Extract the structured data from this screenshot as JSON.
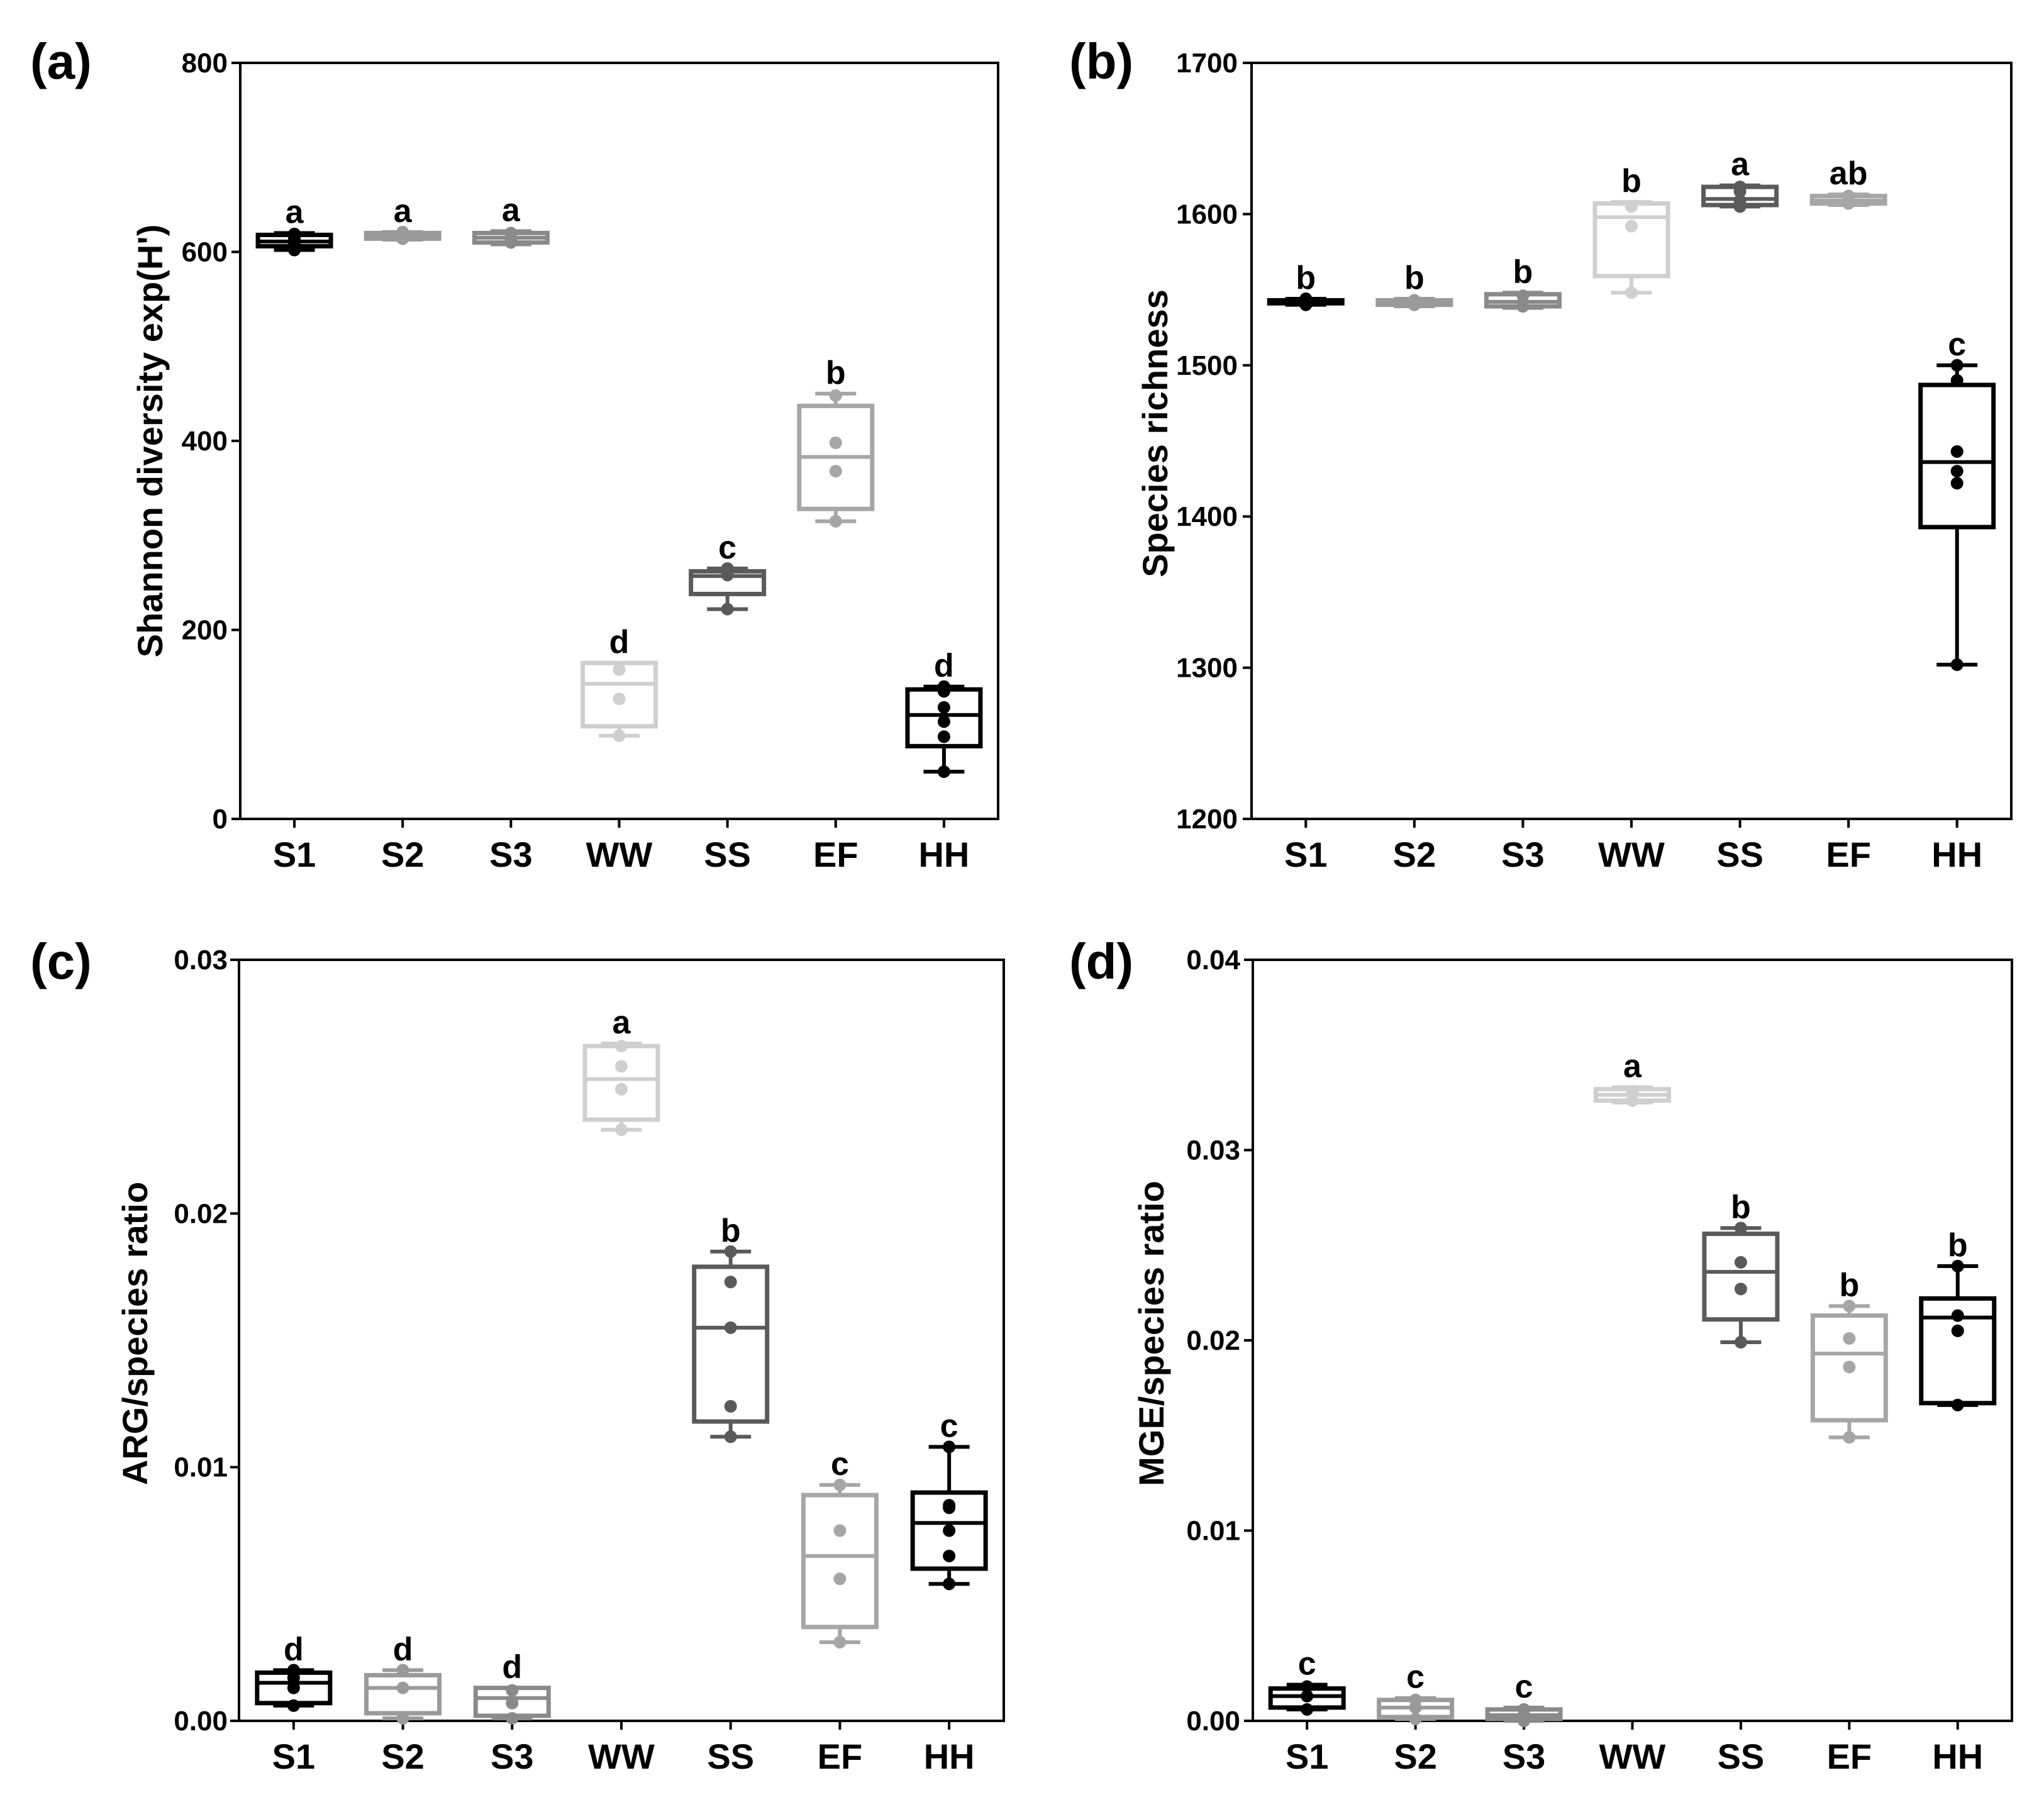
{
  "colors": {
    "S1": "#000000",
    "S2": "#9a9a9a",
    "S3": "#8a8a8a",
    "WW": "#cfcfcf",
    "SS": "#5a5a5a",
    "EF": "#a6a6a6",
    "HH": "#000000"
  },
  "chart_data": [
    {
      "type": "boxplot",
      "panel": "(a)",
      "ylabel": "Shannon diversity exp(H')",
      "ylim": [
        0,
        800
      ],
      "yticks": [
        0,
        200,
        400,
        600,
        800
      ],
      "ytick_labels": [
        "0",
        "200",
        "400",
        "600",
        "800"
      ],
      "categories": [
        "S1",
        "S2",
        "S3",
        "WW",
        "SS",
        "EF",
        "HH"
      ],
      "boxes": [
        {
          "group": "S1",
          "min": 602,
          "q1": 606,
          "median": 611,
          "q3": 618,
          "max": 620,
          "points": [
            602,
            610,
            614,
            619
          ],
          "sig": "a"
        },
        {
          "group": "S2",
          "min": 613,
          "q1": 614,
          "median": 617,
          "q3": 620,
          "max": 621,
          "points": [
            614,
            617,
            619,
            621
          ],
          "sig": "a"
        },
        {
          "group": "S3",
          "min": 608,
          "q1": 610,
          "median": 615,
          "q3": 620,
          "max": 622,
          "points": [
            610,
            612,
            620
          ],
          "sig": "a"
        },
        {
          "group": "WW",
          "min": 88,
          "q1": 98,
          "median": 143,
          "q3": 165,
          "max": 165,
          "points": [
            88,
            127,
            158
          ],
          "sig": "d"
        },
        {
          "group": "SS",
          "min": 222,
          "q1": 238,
          "median": 257,
          "q3": 262,
          "max": 265,
          "points": [
            222,
            258,
            262,
            265
          ],
          "sig": "c"
        },
        {
          "group": "EF",
          "min": 315,
          "q1": 328,
          "median": 383,
          "q3": 437,
          "max": 450,
          "points": [
            315,
            368,
            398,
            448
          ],
          "sig": "b"
        },
        {
          "group": "HH",
          "min": 50,
          "q1": 77,
          "median": 110,
          "q3": 137,
          "max": 140,
          "points": [
            50,
            87,
            103,
            118,
            135,
            140
          ],
          "sig": "d"
        }
      ]
    },
    {
      "type": "boxplot",
      "panel": "(b)",
      "ylabel": "Species richness",
      "ylim": [
        1200,
        1700
      ],
      "yticks": [
        1200,
        1300,
        1400,
        1500,
        1600,
        1700
      ],
      "ytick_labels": [
        "1200",
        "1300",
        "1400",
        "1500",
        "1600",
        "1700"
      ],
      "categories": [
        "S1",
        "S2",
        "S3",
        "WW",
        "SS",
        "EF",
        "HH"
      ],
      "boxes": [
        {
          "group": "S1",
          "min": 1540,
          "q1": 1541,
          "median": 1542,
          "q3": 1543,
          "max": 1544,
          "points": [
            1540,
            1541,
            1542,
            1543,
            1544
          ],
          "sig": "b"
        },
        {
          "group": "S2",
          "min": 1539,
          "q1": 1540,
          "median": 1541,
          "q3": 1543,
          "max": 1544,
          "points": [
            1540,
            1542,
            1543
          ],
          "sig": "b"
        },
        {
          "group": "S3",
          "min": 1538,
          "q1": 1539,
          "median": 1542,
          "q3": 1547,
          "max": 1548,
          "points": [
            1539,
            1546
          ],
          "sig": "b"
        },
        {
          "group": "WW",
          "min": 1548,
          "q1": 1559,
          "median": 1598,
          "q3": 1607,
          "max": 1608,
          "points": [
            1548,
            1592,
            1605
          ],
          "sig": "b"
        },
        {
          "group": "SS",
          "min": 1605,
          "q1": 1606,
          "median": 1610,
          "q3": 1618,
          "max": 1619,
          "points": [
            1605,
            1609,
            1615,
            1618
          ],
          "sig": "a"
        },
        {
          "group": "EF",
          "min": 1606,
          "q1": 1607,
          "median": 1609,
          "q3": 1612,
          "max": 1613,
          "points": [
            1607,
            1610,
            1612
          ],
          "sig": "ab"
        },
        {
          "group": "HH",
          "min": 1302,
          "q1": 1393,
          "median": 1436,
          "q3": 1487,
          "max": 1500,
          "points": [
            1302,
            1422,
            1430,
            1443,
            1490,
            1500
          ],
          "sig": "c"
        }
      ]
    },
    {
      "type": "boxplot",
      "panel": "(c)",
      "ylabel": "ARG/species ratio",
      "ylim": [
        0,
        0.03
      ],
      "yticks": [
        0,
        0.01,
        0.02,
        0.03
      ],
      "ytick_labels": [
        "0.00",
        "0.01",
        "0.02",
        "0.03"
      ],
      "categories": [
        "S1",
        "S2",
        "S3",
        "WW",
        "SS",
        "EF",
        "HH"
      ],
      "boxes": [
        {
          "group": "S1",
          "min": 0.0006,
          "q1": 0.0007,
          "median": 0.0015,
          "q3": 0.0019,
          "max": 0.002,
          "points": [
            0.0006,
            0.0013,
            0.0017,
            0.002
          ],
          "sig": "d"
        },
        {
          "group": "S2",
          "min": 0.0001,
          "q1": 0.0003,
          "median": 0.0013,
          "q3": 0.0018,
          "max": 0.002,
          "points": [
            0.0001,
            0.0013,
            0.002
          ],
          "sig": "d"
        },
        {
          "group": "S3",
          "min": 0.0001,
          "q1": 0.0002,
          "median": 0.0009,
          "q3": 0.0013,
          "max": 0.0013,
          "points": [
            0.0001,
            0.0007,
            0.0012
          ],
          "sig": "d"
        },
        {
          "group": "WW",
          "min": 0.0233,
          "q1": 0.0237,
          "median": 0.0253,
          "q3": 0.0266,
          "max": 0.0267,
          "points": [
            0.0233,
            0.0249,
            0.0258,
            0.0266
          ],
          "sig": "a"
        },
        {
          "group": "SS",
          "min": 0.0112,
          "q1": 0.0118,
          "median": 0.0155,
          "q3": 0.0179,
          "max": 0.0185,
          "points": [
            0.0112,
            0.0124,
            0.0155,
            0.0173,
            0.0185
          ],
          "sig": "b"
        },
        {
          "group": "EF",
          "min": 0.0031,
          "q1": 0.0037,
          "median": 0.0065,
          "q3": 0.0089,
          "max": 0.0093,
          "points": [
            0.0031,
            0.0056,
            0.0075,
            0.0093
          ],
          "sig": "c"
        },
        {
          "group": "HH",
          "min": 0.0054,
          "q1": 0.006,
          "median": 0.0078,
          "q3": 0.009,
          "max": 0.0108,
          "points": [
            0.0054,
            0.0065,
            0.0075,
            0.0084,
            0.0085,
            0.0108
          ],
          "sig": "c"
        }
      ]
    },
    {
      "type": "boxplot",
      "panel": "(d)",
      "ylabel": "MGE/species ratio",
      "ylim": [
        0,
        0.04
      ],
      "yticks": [
        0,
        0.01,
        0.02,
        0.03,
        0.04
      ],
      "ytick_labels": [
        "0.00",
        "0.01",
        "0.02",
        "0.03",
        "0.04"
      ],
      "categories": [
        "S1",
        "S2",
        "S3",
        "WW",
        "SS",
        "EF",
        "HH"
      ],
      "boxes": [
        {
          "group": "S1",
          "min": 0.0006,
          "q1": 0.0007,
          "median": 0.0013,
          "q3": 0.0017,
          "max": 0.0019,
          "points": [
            0.0006,
            0.0013,
            0.0018
          ],
          "sig": "c"
        },
        {
          "group": "S2",
          "min": 0.0001,
          "q1": 0.0002,
          "median": 0.0007,
          "q3": 0.0011,
          "max": 0.0012,
          "points": [
            0.0001,
            0.0007,
            0.0011
          ],
          "sig": "c"
        },
        {
          "group": "S3",
          "min": 0.0,
          "q1": 0.0001,
          "median": 0.0003,
          "q3": 0.0006,
          "max": 0.0007,
          "points": [
            0.0,
            0.0003,
            0.0006
          ],
          "sig": "c"
        },
        {
          "group": "WW",
          "min": 0.0325,
          "q1": 0.0326,
          "median": 0.0329,
          "q3": 0.0332,
          "max": 0.0333,
          "points": [
            0.0326,
            0.0331
          ],
          "sig": "a"
        },
        {
          "group": "SS",
          "min": 0.0199,
          "q1": 0.0211,
          "median": 0.0236,
          "q3": 0.0256,
          "max": 0.0259,
          "points": [
            0.0199,
            0.0227,
            0.0241,
            0.0259
          ],
          "sig": "b"
        },
        {
          "group": "EF",
          "min": 0.0149,
          "q1": 0.0158,
          "median": 0.0193,
          "q3": 0.0213,
          "max": 0.0218,
          "points": [
            0.0149,
            0.0186,
            0.0201,
            0.0218
          ],
          "sig": "b"
        },
        {
          "group": "HH",
          "min": 0.0166,
          "q1": 0.0167,
          "median": 0.0212,
          "q3": 0.0222,
          "max": 0.0239,
          "points": [
            0.0166,
            0.0205,
            0.0213,
            0.0239
          ],
          "sig": "b"
        }
      ]
    }
  ]
}
